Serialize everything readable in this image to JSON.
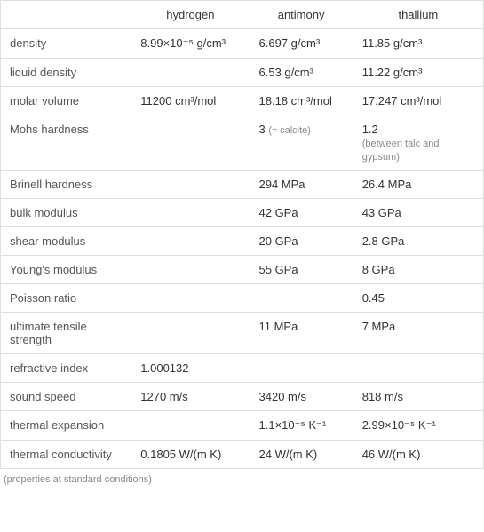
{
  "table": {
    "headers": [
      "",
      "hydrogen",
      "antimony",
      "thallium"
    ],
    "rows": [
      {
        "prop": "density",
        "h": "8.99×10⁻⁵ g/cm³",
        "sb": "6.697 g/cm³",
        "tl": "11.85 g/cm³"
      },
      {
        "prop": "liquid density",
        "h": "",
        "sb": "6.53 g/cm³",
        "tl": "11.22 g/cm³"
      },
      {
        "prop": "molar volume",
        "h": "11200 cm³/mol",
        "sb": "18.18 cm³/mol",
        "tl": "17.247 cm³/mol"
      },
      {
        "prop": "Mohs hardness",
        "h": "",
        "sb": "3 ",
        "sb_note": "(≈ calcite)",
        "tl": "1.2",
        "tl_note": "(between talc and gypsum)"
      },
      {
        "prop": "Brinell hardness",
        "h": "",
        "sb": "294 MPa",
        "tl": "26.4 MPa"
      },
      {
        "prop": "bulk modulus",
        "h": "",
        "sb": "42 GPa",
        "tl": "43 GPa"
      },
      {
        "prop": "shear modulus",
        "h": "",
        "sb": "20 GPa",
        "tl": "2.8 GPa"
      },
      {
        "prop": "Young's modulus",
        "h": "",
        "sb": "55 GPa",
        "tl": "8 GPa"
      },
      {
        "prop": "Poisson ratio",
        "h": "",
        "sb": "",
        "tl": "0.45"
      },
      {
        "prop": "ultimate tensile strength",
        "h": "",
        "sb": "11 MPa",
        "tl": "7 MPa"
      },
      {
        "prop": "refractive index",
        "h": "1.000132",
        "sb": "",
        "tl": ""
      },
      {
        "prop": "sound speed",
        "h": "1270 m/s",
        "sb": "3420 m/s",
        "tl": "818 m/s"
      },
      {
        "prop": "thermal expansion",
        "h": "",
        "sb": "1.1×10⁻⁵ K⁻¹",
        "tl": "2.99×10⁻⁵ K⁻¹"
      },
      {
        "prop": "thermal conductivity",
        "h": "0.1805 W/(m K)",
        "sb": "24 W/(m K)",
        "tl": "46 W/(m K)"
      }
    ],
    "footer": "(properties at standard conditions)",
    "colors": {
      "border": "#e0e0e0",
      "text": "#333333",
      "label": "#555555",
      "note": "#888888",
      "background": "#ffffff"
    },
    "fontsize": 13,
    "note_fontsize": 11
  }
}
